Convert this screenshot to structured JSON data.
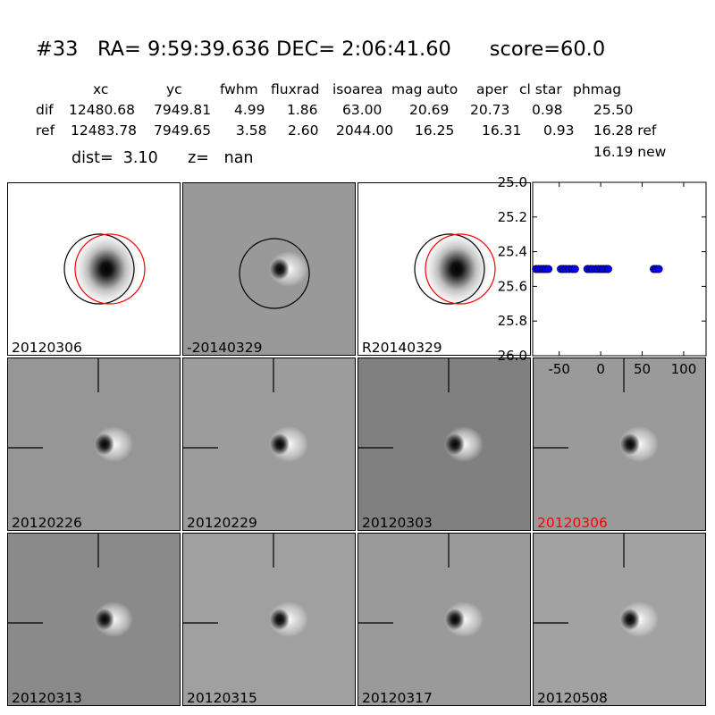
{
  "header": {
    "title": "#33   RA= 9:59:39.636 DEC= 2:06:41.60      score=60.0",
    "columns": [
      "xc",
      "yc",
      "fwhm",
      "fluxrad",
      "isoarea",
      "mag auto",
      "aper",
      "cl star",
      "phmag"
    ],
    "dif_label": "dif",
    "dif_values": [
      "12480.68",
      "7949.81",
      "4.99",
      "1.86",
      "63.00",
      "20.69",
      "20.73",
      "0.98",
      "25.50"
    ],
    "ref_label": "ref",
    "ref_values": [
      "12483.78",
      "7949.65",
      "3.58",
      "2.60",
      "2044.00",
      "16.25",
      "16.31",
      "0.93",
      "16.28 ref"
    ],
    "new_phmag": "16.19 new",
    "dist_line": "dist=  3.10      z=   nan"
  },
  "panels": [
    {
      "label": "20120306",
      "bg": "#ffffff",
      "kind": "star",
      "circles": [
        "black",
        "red"
      ]
    },
    {
      "label": "-20140329",
      "bg": "#999999",
      "kind": "dipole",
      "circles": [
        "black"
      ]
    },
    {
      "label": "R20140329",
      "bg": "#ffffff",
      "kind": "star",
      "circles": [
        "black",
        "red"
      ]
    },
    {
      "label": "20120226",
      "bg": "#969696",
      "kind": "dipole",
      "crosshair": true
    },
    {
      "label": "20120229",
      "bg": "#9c9c9c",
      "kind": "dipole",
      "crosshair": true
    },
    {
      "label": "20120303",
      "bg": "#808080",
      "kind": "dipole",
      "crosshair": true
    },
    {
      "label": "20120306",
      "bg": "#9a9a9a",
      "kind": "dipole",
      "crosshair": true,
      "label_color": "#ff0000"
    },
    {
      "label": "20120313",
      "bg": "#8a8a8a",
      "kind": "dipole",
      "crosshair": true
    },
    {
      "label": "20120315",
      "bg": "#a0a0a0",
      "kind": "dipole",
      "crosshair": true
    },
    {
      "label": "20120317",
      "bg": "#9a9a9a",
      "kind": "dipole",
      "crosshair": true
    },
    {
      "label": "20120508",
      "bg": "#a2a2a2",
      "kind": "dipole",
      "crosshair": true
    }
  ],
  "chart_data": {
    "type": "scatter",
    "title": "",
    "xlabel": "",
    "ylabel": "",
    "xlim": [
      -82,
      127
    ],
    "ylim": [
      26.0,
      25.0
    ],
    "y_inverted": true,
    "xticks": [
      "-50",
      "0",
      "50",
      "100"
    ],
    "yticks": [
      "25.0",
      "25.2",
      "25.4",
      "25.6",
      "25.8",
      "26.0"
    ],
    "marker_color": "#0000ff",
    "series": [
      {
        "x": [
          -78,
          -75,
          -72,
          -69,
          -66,
          -63,
          -48,
          -45,
          -42,
          -38,
          -34,
          -31,
          -16,
          -13,
          -10,
          -6,
          -3,
          0,
          3,
          6,
          9,
          64,
          67,
          70
        ],
        "y": [
          25.5,
          25.5,
          25.5,
          25.5,
          25.5,
          25.5,
          25.5,
          25.5,
          25.5,
          25.5,
          25.5,
          25.5,
          25.5,
          25.5,
          25.5,
          25.5,
          25.5,
          25.5,
          25.5,
          25.5,
          25.5,
          25.5,
          25.5,
          25.5
        ]
      }
    ]
  }
}
